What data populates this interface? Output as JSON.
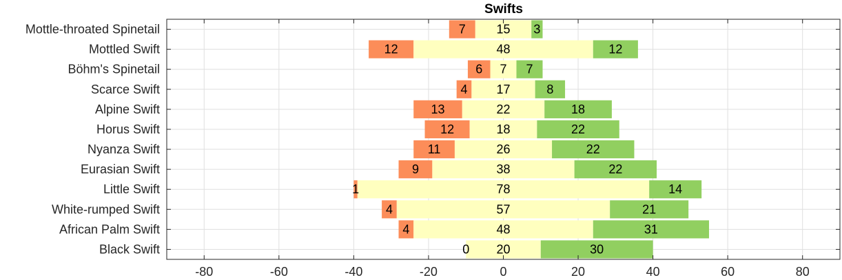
{
  "chart_data": {
    "type": "bar",
    "orientation": "horizontal",
    "stacked": "diverging",
    "title": "Swifts",
    "xlabel": "",
    "ylabel": "",
    "xlim": [
      -90,
      90
    ],
    "xticks": [
      -80,
      -60,
      -40,
      -20,
      0,
      20,
      40,
      60,
      80
    ],
    "grid": true,
    "categories": [
      "Mottle-throated Spinetail",
      "Mottled Swift",
      "Böhm's Spinetail",
      "Scarce Swift",
      "Alpine Swift",
      "Horus Swift",
      "Nyanza Swift",
      "Eurasian Swift",
      "Little Swift",
      "White-rumped Swift",
      "African Palm Swift",
      "Black Swift"
    ],
    "series": [
      {
        "color": "#fc8d59",
        "values": [
          7,
          12,
          6,
          4,
          13,
          12,
          11,
          9,
          1,
          4,
          4,
          0
        ]
      },
      {
        "color": "#ffffbf",
        "values": [
          15,
          48,
          7,
          17,
          22,
          18,
          26,
          38,
          78,
          57,
          48,
          20
        ]
      },
      {
        "color": "#91cf60",
        "values": [
          3,
          12,
          7,
          8,
          18,
          22,
          22,
          22,
          14,
          21,
          31,
          30
        ]
      }
    ]
  }
}
